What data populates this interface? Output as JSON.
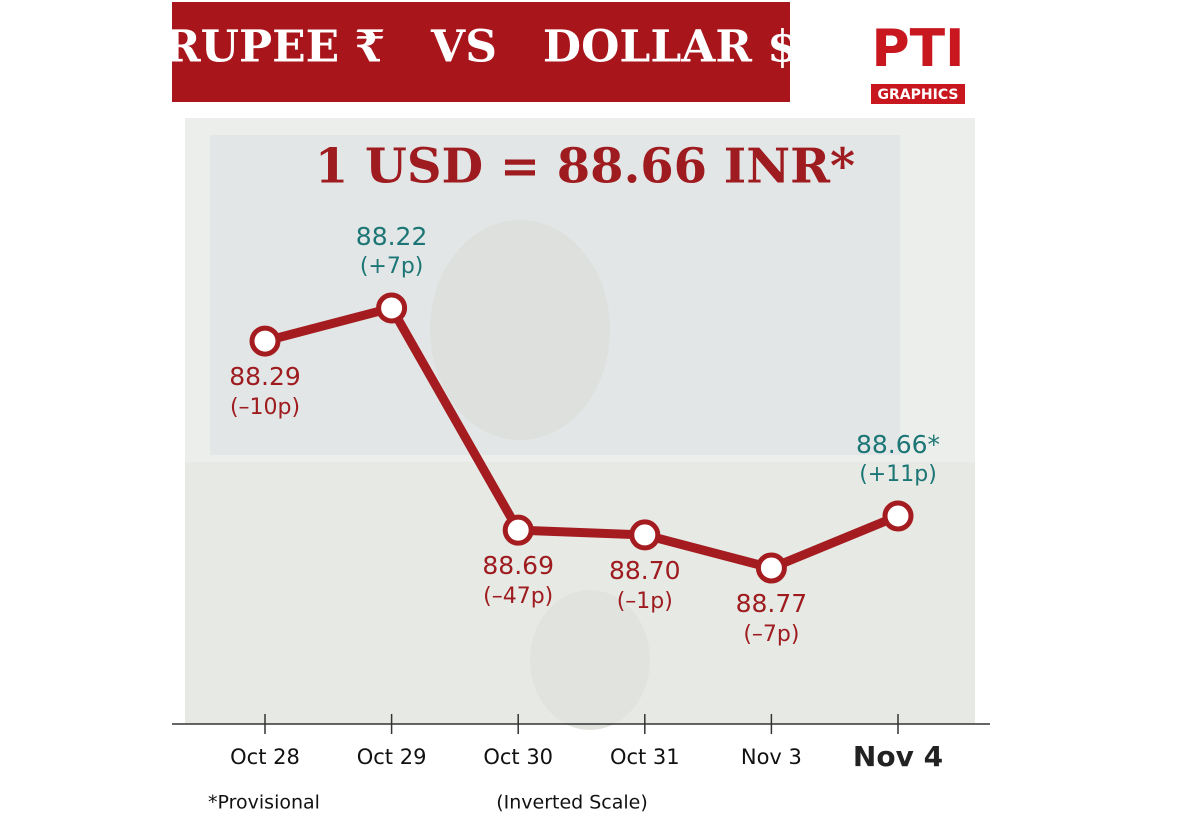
{
  "chart_data": {
    "type": "line",
    "title": "RUPEE ₹   VS   DOLLAR $",
    "logo": {
      "brand": "PTI",
      "tag": "GRAPHICS"
    },
    "headline": "1 USD = 88.66 INR*",
    "categories": [
      "Oct 28",
      "Oct 29",
      "Oct 30",
      "Oct 31",
      "Nov 3",
      "Nov 4"
    ],
    "values": [
      88.29,
      88.22,
      88.69,
      88.7,
      88.77,
      88.66
    ],
    "value_labels": [
      "88.29",
      "88.22",
      "88.69",
      "88.70",
      "88.77",
      "88.66*"
    ],
    "change_labels": [
      "(–10p)",
      "(+7p)",
      "(–47p)",
      "(–1p)",
      "(–7p)",
      "(+11p)"
    ],
    "label_colors": [
      "#9e1b1f",
      "#1d7676",
      "#9e1b1f",
      "#9e1b1f",
      "#9e1b1f",
      "#1d7676"
    ],
    "color": "#a51c20",
    "ylim": [
      88.0,
      89.1
    ],
    "inverted": true,
    "footnote": "*Provisional",
    "scale_note": "(Inverted Scale)"
  }
}
